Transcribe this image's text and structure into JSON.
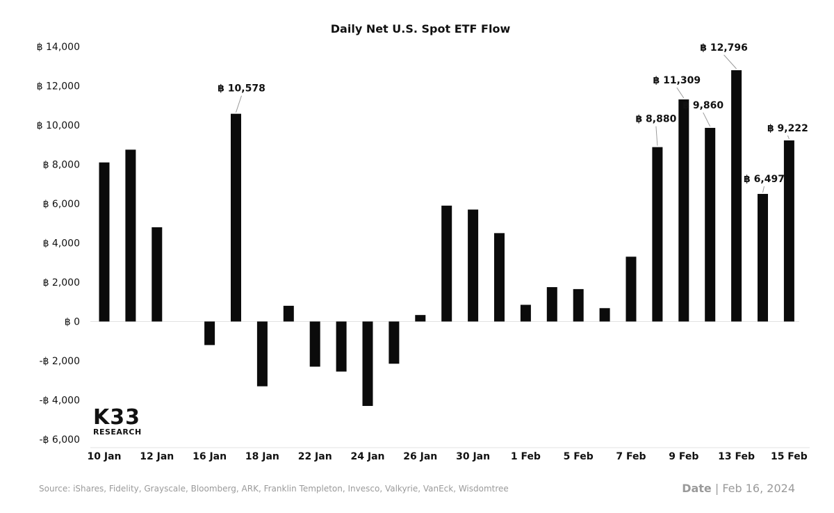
{
  "chart_data": {
    "type": "bar",
    "title": "Daily Net U.S. Spot ETF Flow",
    "xlabel": "",
    "ylabel": "",
    "currency_symbol": "฿",
    "ylim": [
      -6000,
      14000
    ],
    "yticks": [
      14000,
      12000,
      10000,
      8000,
      6000,
      4000,
      2000,
      0,
      -2000,
      -4000,
      -6000
    ],
    "ytick_labels": [
      "฿ 14,000",
      "฿ 12,000",
      "฿ 10,000",
      "฿ 8,000",
      "฿ 6,000",
      "฿ 4,000",
      "฿ 2,000",
      "฿ 0",
      "-฿ 2,000",
      "-฿ 4,000",
      "-฿ 6,000"
    ],
    "grid": false,
    "bar_color": "#0b0b0b",
    "x": [
      "10 Jan",
      "11 Jan",
      "12 Jan",
      "15 Jan",
      "16 Jan",
      "17 Jan",
      "18 Jan",
      "19 Jan",
      "22 Jan",
      "23 Jan",
      "24 Jan",
      "25 Jan",
      "26 Jan",
      "29 Jan",
      "30 Jan",
      "31 Jan",
      "1 Feb",
      "2 Feb",
      "5 Feb",
      "6 Feb",
      "7 Feb",
      "8 Feb",
      "9 Feb",
      "12 Feb",
      "13 Feb",
      "14 Feb",
      "15 Feb"
    ],
    "values": [
      8100,
      8750,
      4800,
      0,
      -1200,
      10578,
      -3300,
      800,
      -2300,
      -2550,
      -4300,
      -2150,
      330,
      5900,
      5700,
      4500,
      850,
      1750,
      1650,
      680,
      3300,
      8880,
      11309,
      9860,
      12796,
      6497,
      9222
    ],
    "xtick_labels": [
      "10 Jan",
      "12 Jan",
      "16 Jan",
      "18 Jan",
      "22 Jan",
      "24 Jan",
      "26 Jan",
      "30 Jan",
      "1 Feb",
      "5 Feb",
      "7 Feb",
      "9 Feb",
      "13 Feb",
      "15 Feb"
    ],
    "annotations": [
      {
        "category": "17 Jan",
        "text": "฿ 10,578"
      },
      {
        "category": "8 Feb",
        "text": "฿ 8,880"
      },
      {
        "category": "9 Feb",
        "text": "฿ 11,309"
      },
      {
        "category": "12 Feb",
        "text": "฿ 9,860"
      },
      {
        "category": "13 Feb",
        "text": "฿ 12,796"
      },
      {
        "category": "14 Feb",
        "text": "฿ 6,497"
      },
      {
        "category": "15 Feb",
        "text": "฿ 9,222"
      }
    ]
  },
  "footer": {
    "source": "Source:  iShares, Fidelity, Grayscale, Bloomberg, ARK, Franklin Templeton, Invesco, Valkyrie, VanEck, Wisdomtree",
    "date_label": "Date",
    "date_separator": " | ",
    "date_value": "Feb 16, 2024"
  },
  "logo": {
    "top": "K33",
    "bottom": "RESEARCH"
  }
}
